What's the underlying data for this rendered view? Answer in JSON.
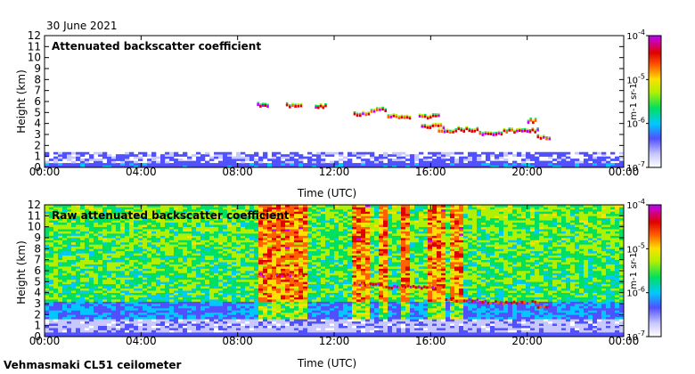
{
  "date_label": "30 June 2021",
  "footer_label": "Vehmasmaki CL51 ceilometer",
  "chart_data": [
    {
      "type": "heatmap",
      "title": "Attenuated backscatter coefficient",
      "xlabel": "Time (UTC)",
      "ylabel": "Height (km)",
      "xticks": [
        "00:00",
        "04:00",
        "08:00",
        "12:00",
        "16:00",
        "20:00",
        "00:00"
      ],
      "xlim_hours": [
        0,
        24
      ],
      "ylim_km": [
        0,
        12
      ],
      "yticks": [
        0,
        1,
        2,
        3,
        4,
        5,
        6,
        7,
        8,
        9,
        10,
        11,
        12
      ],
      "colorbar": {
        "scale": "log",
        "range": [
          1e-07,
          0.0001
        ],
        "tick_labels": [
          "10^-7",
          "10^-6",
          "10^-5",
          "10^-4"
        ],
        "unit": "m-1 sr-1"
      },
      "features": {
        "boundary_layer_top_km": 1.5,
        "cloud_layers": [
          {
            "start_h": 8.8,
            "end_h": 9.3,
            "height_km": 5.6
          },
          {
            "start_h": 10.0,
            "end_h": 10.7,
            "height_km": 5.6
          },
          {
            "start_h": 11.2,
            "end_h": 11.7,
            "height_km": 5.5
          },
          {
            "start_h": 12.8,
            "end_h": 13.5,
            "height_km": 4.8
          },
          {
            "start_h": 13.5,
            "end_h": 14.2,
            "height_km": 5.2
          },
          {
            "start_h": 14.2,
            "end_h": 15.2,
            "height_km": 4.6
          },
          {
            "start_h": 15.5,
            "end_h": 16.4,
            "height_km": 4.6
          },
          {
            "start_h": 15.6,
            "end_h": 16.6,
            "height_km": 3.7
          },
          {
            "start_h": 16.3,
            "end_h": 17.0,
            "height_km": 3.3
          },
          {
            "start_h": 17.0,
            "end_h": 18.0,
            "height_km": 3.4
          },
          {
            "start_h": 18.0,
            "end_h": 19.0,
            "height_km": 3.0
          },
          {
            "start_h": 19.0,
            "end_h": 20.5,
            "height_km": 3.3
          },
          {
            "start_h": 20.0,
            "end_h": 20.4,
            "height_km": 4.2
          },
          {
            "start_h": 20.4,
            "end_h": 21.0,
            "height_km": 2.7
          }
        ]
      }
    },
    {
      "type": "heatmap",
      "title": "Raw attenuated backscatter coefficient",
      "xlabel": "Time (UTC)",
      "ylabel": "Height (km)",
      "xticks": [
        "00:00",
        "04:00",
        "08:00",
        "12:00",
        "16:00",
        "20:00",
        "00:00"
      ],
      "xlim_hours": [
        0,
        24
      ],
      "ylim_km": [
        0,
        12
      ],
      "yticks": [
        0,
        1,
        2,
        3,
        4,
        5,
        6,
        7,
        8,
        9,
        10,
        11,
        12
      ],
      "colorbar": {
        "scale": "log",
        "range": [
          1e-07,
          0.0001
        ],
        "tick_labels": [
          "10^-7",
          "10^-6",
          "10^-5",
          "10^-4"
        ],
        "unit": "m-1 sr-1"
      },
      "features": {
        "noisy_background": true,
        "enhanced_columns_h": [
          [
            8.8,
            10.8
          ],
          [
            12.8,
            13.5
          ],
          [
            13.8,
            14.3
          ],
          [
            14.8,
            15.2
          ],
          [
            15.8,
            16.6
          ],
          [
            16.8,
            17.4
          ]
        ],
        "cloud_layers": [
          {
            "start_h": 8.8,
            "end_h": 10.8,
            "height_km": 5.6
          },
          {
            "start_h": 12.8,
            "end_h": 14.0,
            "height_km": 4.8
          },
          {
            "start_h": 14.0,
            "end_h": 16.6,
            "height_km": 4.5
          },
          {
            "start_h": 16.6,
            "end_h": 18.0,
            "height_km": 3.3
          },
          {
            "start_h": 18.0,
            "end_h": 20.5,
            "height_km": 3.1
          },
          {
            "start_h": 20.4,
            "end_h": 21.0,
            "height_km": 2.7
          }
        ]
      }
    }
  ]
}
